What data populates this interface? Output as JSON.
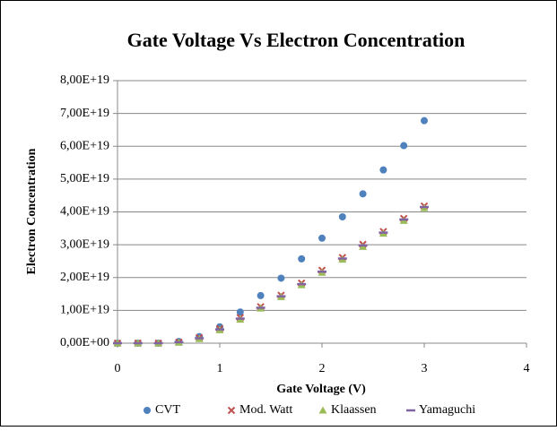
{
  "chart_data": {
    "type": "scatter",
    "title": "Gate Voltage Vs Electron Concentration",
    "x_label": "Gate Voltage (V)",
    "y_label": "Electron Concentration",
    "x": [
      0,
      0.2,
      0.4,
      0.6,
      0.8,
      1.0,
      1.2,
      1.4,
      1.6,
      1.8,
      2.0,
      2.2,
      2.4,
      2.6,
      2.8,
      3.0
    ],
    "series": [
      {
        "name": "CVT",
        "color": "#4f81bd",
        "marker": "circle",
        "values": [
          0,
          0,
          0,
          5e+17,
          2e+18,
          5e+18,
          9.5e+18,
          1.45e+19,
          1.98e+19,
          2.57e+19,
          3.2e+19,
          3.85e+19,
          4.55e+19,
          5.28e+19,
          6.02e+19,
          6.78e+19
        ]
      },
      {
        "name": "Mod. Watt",
        "color": "#c0504d",
        "marker": "x",
        "values": [
          0,
          0,
          0,
          3e+17,
          1.7e+18,
          4.4e+18,
          7.8e+18,
          1.11e+19,
          1.46e+19,
          1.83e+19,
          2.22e+19,
          2.61e+19,
          3.01e+19,
          3.4e+19,
          3.8e+19,
          4.18e+19
        ]
      },
      {
        "name": "Klaassen",
        "color": "#9bbb59",
        "marker": "triangle",
        "values": [
          0,
          0,
          0,
          2e+17,
          1.3e+18,
          4e+18,
          7.2e+18,
          1.06e+19,
          1.41e+19,
          1.77e+19,
          2.15e+19,
          2.55e+19,
          2.94e+19,
          3.34e+19,
          3.73e+19,
          4.12e+19
        ]
      },
      {
        "name": "Yamaguchi",
        "color": "#8064a2",
        "marker": "dash",
        "values": [
          0,
          0,
          0,
          3e+17,
          1.5e+18,
          4.2e+18,
          7.5e+18,
          1.08e+19,
          1.43e+19,
          1.8e+19,
          2.18e+19,
          2.58e+19,
          2.98e+19,
          3.37e+19,
          3.77e+19,
          4.15e+19
        ]
      }
    ],
    "xlim": [
      0,
      4
    ],
    "xticks": [
      0,
      1,
      2,
      3,
      4
    ],
    "ylim": [
      0,
      8e+19
    ],
    "yticks": [
      {
        "value": 0,
        "label": "0,00E+00"
      },
      {
        "value": 1e+19,
        "label": "1,00E+19"
      },
      {
        "value": 2e+19,
        "label": "2,00E+19"
      },
      {
        "value": 3e+19,
        "label": "3,00E+19"
      },
      {
        "value": 4e+19,
        "label": "4,00E+19"
      },
      {
        "value": 5e+19,
        "label": "5,00E+19"
      },
      {
        "value": 6e+19,
        "label": "6,00E+19"
      },
      {
        "value": 7e+19,
        "label": "7,00E+19"
      },
      {
        "value": 8e+19,
        "label": "8,00E+19"
      }
    ],
    "grid": true,
    "legend": "bottom"
  }
}
